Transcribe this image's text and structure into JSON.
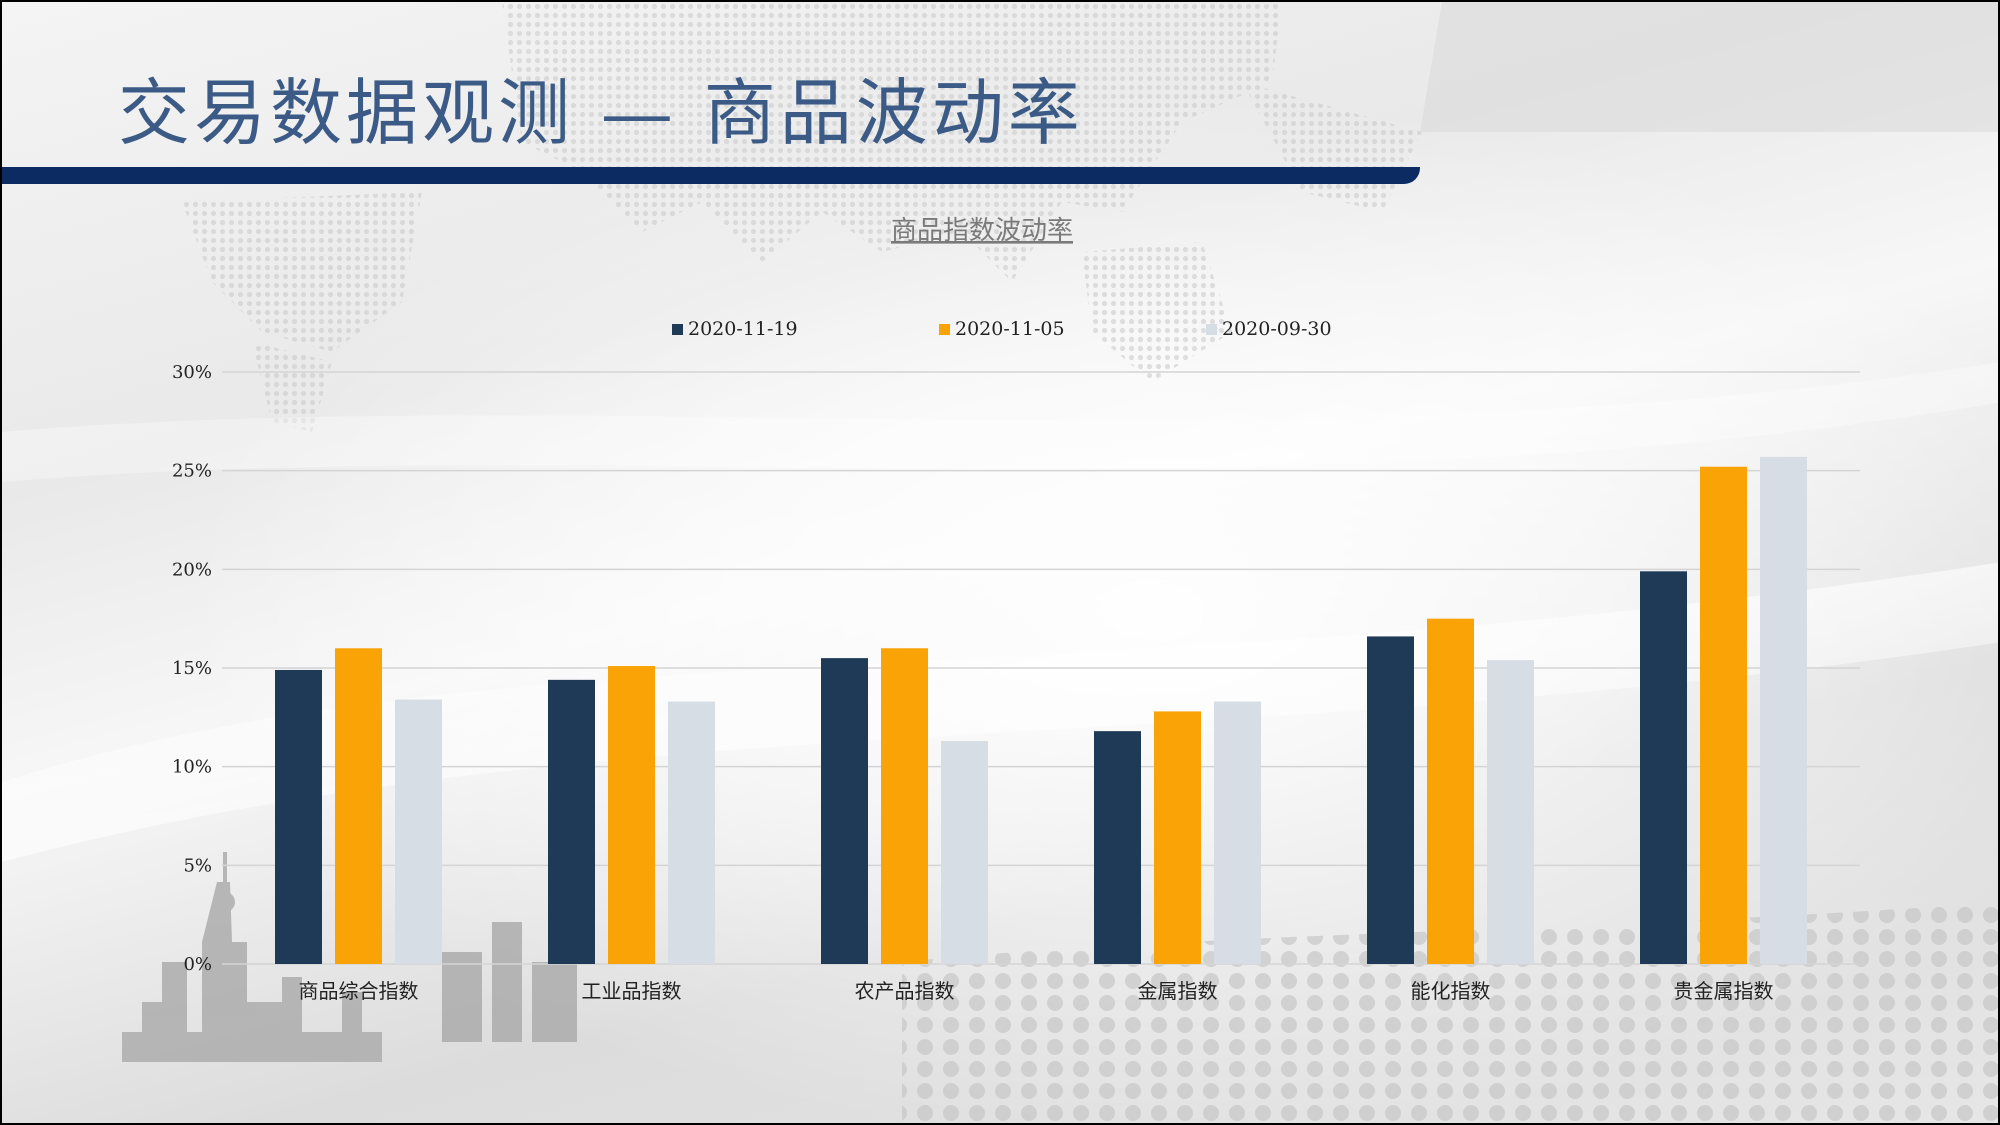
{
  "slide": {
    "title": "交易数据观测 — 商品波动率"
  },
  "colors": {
    "title_text": "#3b5b86",
    "title_bar": "#0c2b63",
    "gridline": "#d4d4d4",
    "axis_text": "#222222",
    "chart_title_text": "#7a7a7a"
  },
  "chart_data": {
    "type": "bar",
    "title": "商品指数波动率",
    "xlabel": "",
    "ylabel": "",
    "categories": [
      "商品综合指数",
      "工业品指数",
      "农产品指数",
      "金属指数",
      "能化指数",
      "贵金属指数"
    ],
    "series": [
      {
        "name": "2020-11-19",
        "color": "#1f3a56",
        "values": [
          0.149,
          0.144,
          0.155,
          0.118,
          0.166,
          0.199
        ]
      },
      {
        "name": "2020-11-05",
        "color": "#f9a307",
        "values": [
          0.16,
          0.151,
          0.16,
          0.128,
          0.175,
          0.252
        ]
      },
      {
        "name": "2020-09-30",
        "color": "#d6dde5",
        "values": [
          0.134,
          0.133,
          0.113,
          0.133,
          0.154,
          0.257
        ]
      }
    ],
    "ylim": [
      0,
      0.3
    ],
    "yticks": [
      0,
      0.05,
      0.1,
      0.15,
      0.2,
      0.25,
      0.3
    ],
    "ytick_labels": [
      "0%",
      "5%",
      "10%",
      "15%",
      "20%",
      "25%",
      "30%"
    ],
    "grid": true,
    "legend_position": "top"
  }
}
